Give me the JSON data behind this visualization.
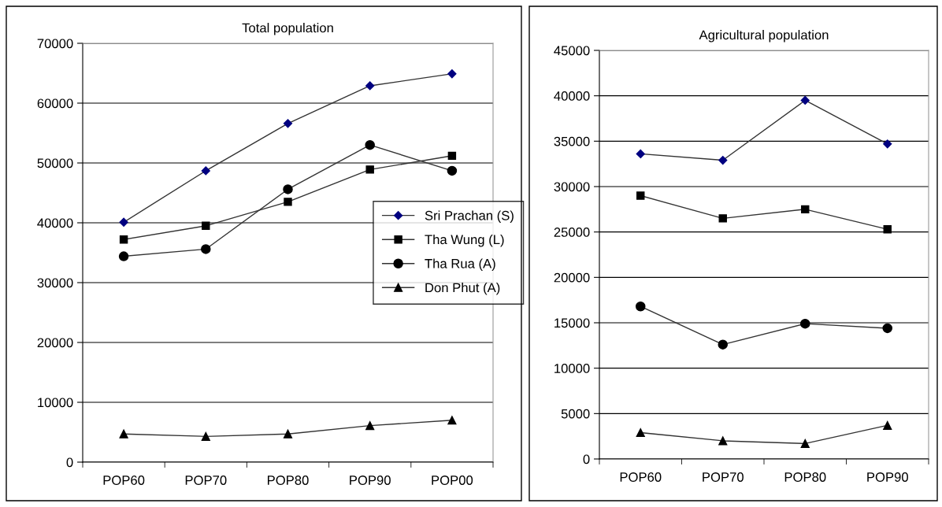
{
  "chart_data": [
    {
      "type": "line",
      "title": "Total population",
      "categories": [
        "POP60",
        "POP70",
        "POP80",
        "POP90",
        "POP00"
      ],
      "ylim": [
        0,
        70000
      ],
      "yticks": [
        0,
        10000,
        20000,
        30000,
        40000,
        50000,
        60000,
        70000
      ],
      "grid": "y",
      "legend": "right",
      "series": [
        {
          "name": "Sri Prachan (S)",
          "color": "#000080",
          "marker": "diamond",
          "values": [
            40100,
            48700,
            56600,
            62900,
            64900
          ]
        },
        {
          "name": "Tha Wung (L)",
          "color": "#000000",
          "marker": "square",
          "values": [
            37200,
            39500,
            43500,
            48900,
            51200
          ]
        },
        {
          "name": "Tha Rua (A)",
          "color": "#000000",
          "marker": "circle",
          "values": [
            34400,
            35600,
            45600,
            53000,
            48700
          ]
        },
        {
          "name": "Don Phut (A)",
          "color": "#000000",
          "marker": "triangle",
          "values": [
            4700,
            4300,
            4700,
            6100,
            7000
          ]
        }
      ]
    },
    {
      "type": "line",
      "title": "Agricultural population",
      "categories": [
        "POP60",
        "POP70",
        "POP80",
        "POP90"
      ],
      "ylim": [
        0,
        45000
      ],
      "yticks": [
        0,
        5000,
        10000,
        15000,
        20000,
        25000,
        30000,
        35000,
        40000,
        45000
      ],
      "grid": "y",
      "series": [
        {
          "color": "#000080",
          "marker": "diamond",
          "values": [
            33600,
            32900,
            39500,
            34700
          ]
        },
        {
          "color": "#000000",
          "marker": "square",
          "values": [
            29000,
            26500,
            27500,
            25300
          ]
        },
        {
          "color": "#000000",
          "marker": "circle",
          "values": [
            16800,
            12600,
            14900,
            14400
          ]
        },
        {
          "color": "#000000",
          "marker": "triangle",
          "values": [
            2900,
            2000,
            1700,
            3700
          ]
        }
      ]
    }
  ]
}
